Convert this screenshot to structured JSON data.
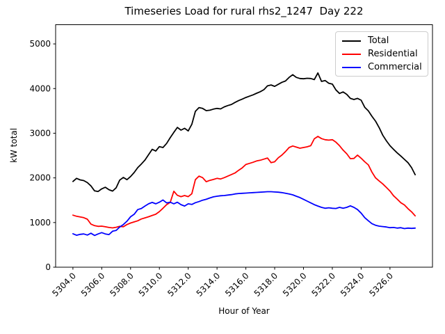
{
  "figure": {
    "title": "Timeseries Load for rural rhs2_1247  Day 222"
  },
  "chart_data": {
    "type": "line",
    "title": "Timeseries Load for rural rhs2_1247  Day 222",
    "xlabel": "Hour of Year",
    "ylabel": "kW total",
    "xlim": [
      5302.8,
      5328.95
    ],
    "ylim": [
      0,
      5430
    ],
    "grid": false,
    "legend_position": "upper right",
    "x_tick_values": [
      5304,
      5306,
      5308,
      5310,
      5312,
      5314,
      5316,
      5318,
      5320,
      5322,
      5324,
      5326
    ],
    "x_tick_labels": [
      "5304.0",
      "5306.0",
      "5308.0",
      "5310.0",
      "5312.0",
      "5314.0",
      "5316.0",
      "5318.0",
      "5320.0",
      "5322.0",
      "5324.0",
      "5326.0"
    ],
    "y_tick_values": [
      0,
      1000,
      2000,
      3000,
      4000,
      5000
    ],
    "y_tick_labels": [
      "0",
      "1000",
      "2000",
      "3000",
      "4000",
      "5000"
    ],
    "x_start": 5304.0,
    "x_step": 0.25,
    "n_points": 96,
    "series": [
      {
        "name": "Total",
        "color": "#000000",
        "values": [
          1920,
          1990,
          1955,
          1940,
          1895,
          1820,
          1710,
          1695,
          1755,
          1790,
          1735,
          1705,
          1780,
          1950,
          2010,
          1960,
          2030,
          2120,
          2230,
          2310,
          2400,
          2520,
          2640,
          2600,
          2700,
          2680,
          2770,
          2900,
          3020,
          3130,
          3070,
          3110,
          3050,
          3200,
          3490,
          3575,
          3555,
          3505,
          3515,
          3540,
          3555,
          3545,
          3590,
          3620,
          3645,
          3690,
          3730,
          3765,
          3800,
          3830,
          3860,
          3895,
          3930,
          3975,
          4060,
          4080,
          4050,
          4095,
          4140,
          4170,
          4250,
          4310,
          4250,
          4225,
          4220,
          4230,
          4225,
          4200,
          4350,
          4160,
          4180,
          4120,
          4100,
          3970,
          3890,
          3925,
          3870,
          3780,
          3755,
          3780,
          3740,
          3580,
          3500,
          3380,
          3270,
          3125,
          2955,
          2830,
          2720,
          2640,
          2560,
          2490,
          2415,
          2340,
          2230,
          2070
        ]
      },
      {
        "name": "Residential",
        "color": "#ff0000",
        "values": [
          1165,
          1140,
          1125,
          1110,
          1075,
          965,
          930,
          915,
          920,
          905,
          890,
          880,
          895,
          915,
          905,
          955,
          990,
          1015,
          1040,
          1080,
          1105,
          1130,
          1160,
          1185,
          1245,
          1320,
          1400,
          1450,
          1700,
          1610,
          1580,
          1605,
          1580,
          1645,
          1960,
          2040,
          2005,
          1915,
          1945,
          1965,
          1990,
          1975,
          2005,
          2040,
          2075,
          2110,
          2170,
          2225,
          2300,
          2325,
          2350,
          2380,
          2395,
          2420,
          2445,
          2340,
          2360,
          2450,
          2510,
          2590,
          2680,
          2715,
          2690,
          2665,
          2680,
          2695,
          2720,
          2875,
          2930,
          2880,
          2855,
          2845,
          2855,
          2800,
          2720,
          2620,
          2540,
          2430,
          2435,
          2510,
          2440,
          2360,
          2290,
          2130,
          2000,
          1930,
          1865,
          1785,
          1705,
          1600,
          1525,
          1445,
          1395,
          1310,
          1240,
          1150
        ]
      },
      {
        "name": "Commercial",
        "color": "#0000ff",
        "values": [
          750,
          715,
          735,
          745,
          720,
          760,
          710,
          745,
          775,
          745,
          730,
          805,
          825,
          900,
          955,
          1030,
          1130,
          1185,
          1290,
          1315,
          1370,
          1420,
          1450,
          1420,
          1455,
          1505,
          1440,
          1455,
          1420,
          1455,
          1400,
          1370,
          1420,
          1405,
          1445,
          1470,
          1500,
          1520,
          1550,
          1575,
          1590,
          1600,
          1605,
          1615,
          1625,
          1640,
          1650,
          1655,
          1660,
          1665,
          1670,
          1675,
          1680,
          1685,
          1690,
          1690,
          1685,
          1680,
          1670,
          1655,
          1640,
          1620,
          1590,
          1560,
          1520,
          1480,
          1440,
          1400,
          1370,
          1340,
          1320,
          1330,
          1320,
          1315,
          1340,
          1320,
          1340,
          1375,
          1340,
          1290,
          1210,
          1110,
          1040,
          975,
          940,
          920,
          910,
          900,
          885,
          890,
          875,
          885,
          865,
          875,
          870,
          875
        ]
      }
    ]
  }
}
